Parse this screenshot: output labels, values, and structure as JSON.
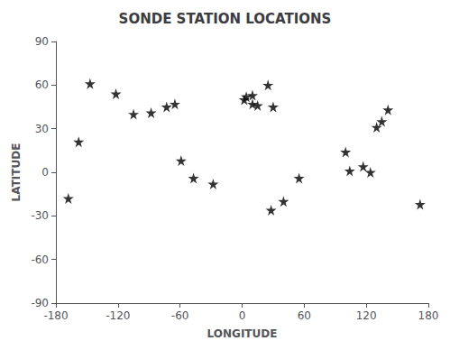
{
  "chart_data": {
    "type": "scatter",
    "title": "SONDE STATION LOCATIONS",
    "xlabel": "LONGITUDE",
    "ylabel": "LATITUDE",
    "x": [
      -168,
      -158,
      -147,
      -122,
      -105,
      -88,
      -73,
      -65,
      -59,
      -47,
      -28,
      4,
      2,
      10,
      10,
      25,
      15,
      30,
      28,
      40,
      55,
      100,
      104,
      117,
      124,
      130,
      135,
      141,
      172
    ],
    "values": [
      -18,
      21,
      61,
      54,
      40,
      41,
      45,
      47,
      8,
      -4,
      -8,
      52,
      50,
      53,
      47,
      60,
      46,
      45,
      -26,
      -20,
      -4,
      14,
      1,
      4,
      0,
      31,
      35,
      43,
      -22
    ],
    "xlim": [
      -180,
      180
    ],
    "ylim": [
      -90,
      90
    ],
    "xticks": [
      -180,
      -120,
      -60,
      0,
      60,
      120,
      180
    ],
    "yticks": [
      -90,
      -60,
      -30,
      0,
      30,
      60,
      90
    ],
    "marker": "star",
    "color": "black",
    "grid": false
  }
}
